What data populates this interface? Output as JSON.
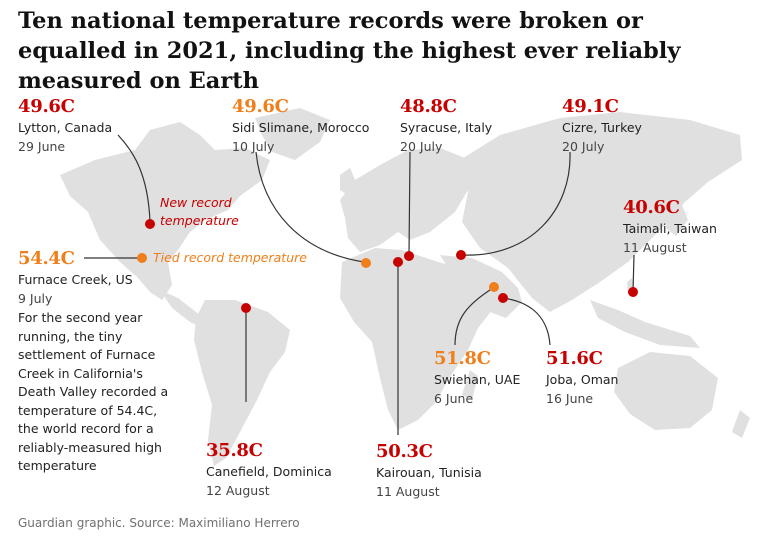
{
  "title": "Ten national temperature records were broken or equalled in 2021, including the highest ever reliably measured on Earth",
  "colors": {
    "new_record": "#c70000",
    "tied_record": "#ef7f1a",
    "land": "#e0e0e0",
    "line": "#333333"
  },
  "legend": {
    "new_label": "New record temperature",
    "tied_label": "Tied record temperature"
  },
  "records": [
    {
      "id": "lytton",
      "temp": "49.6C",
      "place": "Lytton, Canada",
      "date": "29 June",
      "type": "new"
    },
    {
      "id": "furnace",
      "temp": "54.4C",
      "place": "Furnace Creek, US",
      "date": "9 July",
      "type": "tied",
      "note": "For the second year running, the tiny settlement of Furnace Creek in California's Death Valley recorded a temperature of 54.4C, the world record for a reliably-measured high temperature"
    },
    {
      "id": "sidi",
      "temp": "49.6C",
      "place": "Sidi Slimane, Morocco",
      "date": "10 July",
      "type": "tied"
    },
    {
      "id": "syracuse",
      "temp": "48.8C",
      "place": "Syracuse, Italy",
      "date": "20 July",
      "type": "new"
    },
    {
      "id": "cizre",
      "temp": "49.1C",
      "place": "Cizre, Turkey",
      "date": "20 July",
      "type": "new"
    },
    {
      "id": "taimali",
      "temp": "40.6C",
      "place": "Taimali, Taiwan",
      "date": "11 August",
      "type": "new"
    },
    {
      "id": "swiehan",
      "temp": "51.8C",
      "place": "Swiehan, UAE",
      "date": "6 June",
      "type": "tied"
    },
    {
      "id": "joba",
      "temp": "51.6C",
      "place": "Joba, Oman",
      "date": "16 June",
      "type": "new"
    },
    {
      "id": "canefield",
      "temp": "35.8C",
      "place": "Canefield, Dominica",
      "date": "12 August",
      "type": "new"
    },
    {
      "id": "kairouan",
      "temp": "50.3C",
      "place": "Kairouan, Tunisia",
      "date": "11 August",
      "type": "new"
    }
  ],
  "source": "Guardian graphic. Source: Maximiliano Herrero"
}
